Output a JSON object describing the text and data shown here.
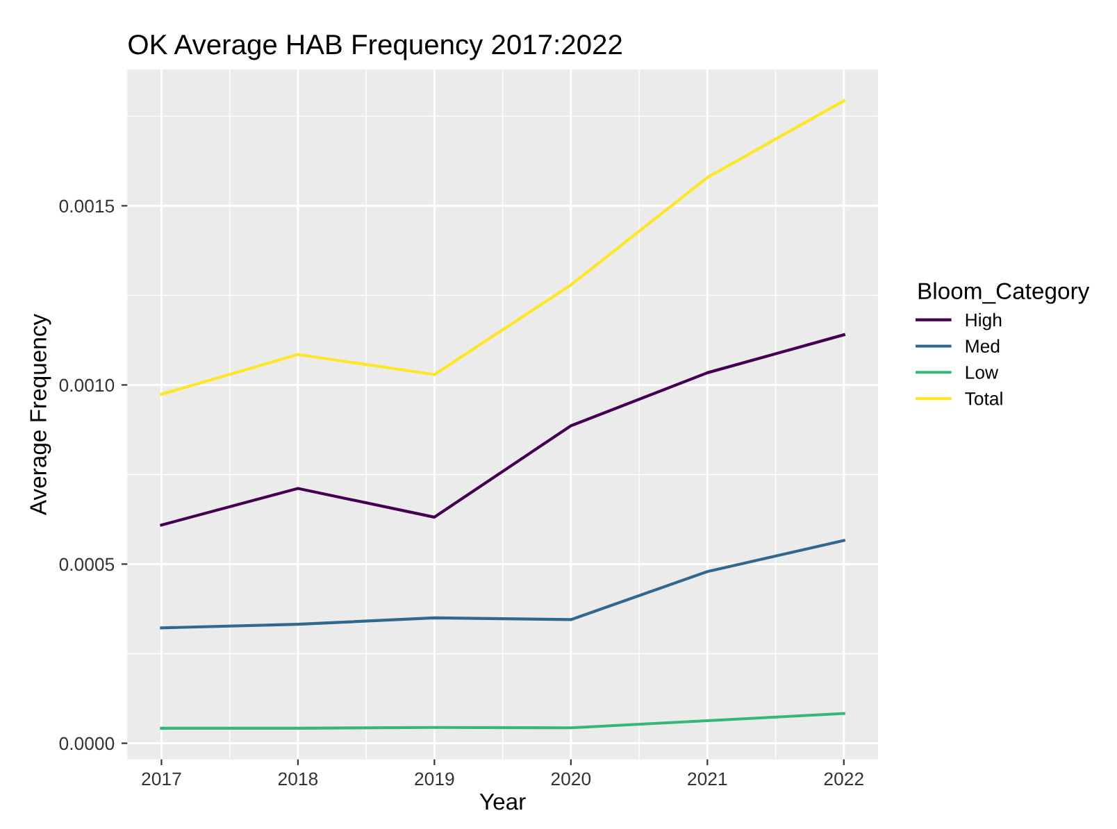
{
  "chart_data": {
    "type": "line",
    "title": "OK Average HAB Frequency 2017:2022",
    "xlabel": "Year",
    "ylabel": "Average Frequency",
    "legend_title": "Bloom_Category",
    "x": [
      2017,
      2018,
      2019,
      2020,
      2021,
      2022
    ],
    "series": [
      {
        "name": "High",
        "color": "#440154",
        "values": [
          0.000609,
          0.000711,
          0.000631,
          0.000886,
          0.001034,
          0.00114
        ]
      },
      {
        "name": "Med",
        "color": "#31688e",
        "values": [
          0.000322,
          0.000332,
          0.00035,
          0.000345,
          0.000479,
          0.000566
        ]
      },
      {
        "name": "Low",
        "color": "#35b779",
        "values": [
          4.2e-05,
          4.2e-05,
          4.4e-05,
          4.3e-05,
          6.3e-05,
          8.3e-05
        ]
      },
      {
        "name": "Total",
        "color": "#fde725",
        "values": [
          0.000974,
          0.001085,
          0.001029,
          0.001279,
          0.001579,
          0.001793
        ]
      }
    ],
    "xlim": [
      2016.75,
      2022.25
    ],
    "ylim": [
      -4.5e-05,
      0.00188
    ],
    "xticks": [
      2017,
      2018,
      2019,
      2020,
      2021,
      2022
    ],
    "yticks": [
      {
        "value": 0,
        "label": "0.0000"
      },
      {
        "value": 0.0005,
        "label": "0.0005"
      },
      {
        "value": 0.001,
        "label": "0.0010"
      },
      {
        "value": 0.0015,
        "label": "0.0015"
      }
    ],
    "grid": true,
    "legend": "right",
    "marker": "none",
    "line_style": "solid"
  }
}
